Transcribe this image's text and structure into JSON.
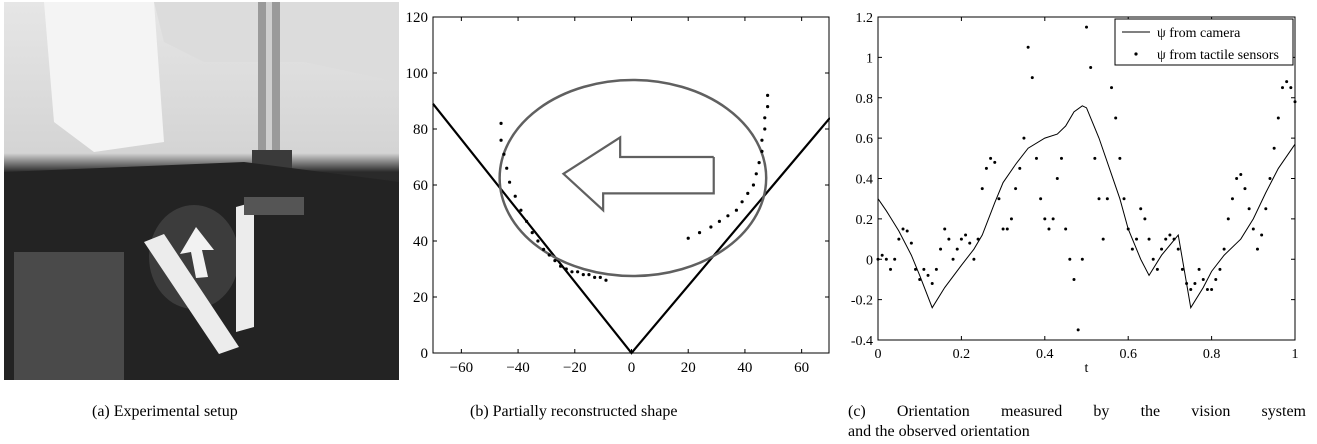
{
  "figure": {
    "captions": {
      "a": "(a) Experimental setup",
      "b": "(b) Partially reconstructed shape",
      "c1": "(c) Orientation measured by the vision system",
      "c2": "and the observed orientation"
    }
  },
  "chart_data": [
    {
      "type": "scatter",
      "xlim": [
        -70,
        70
      ],
      "ylim": [
        0,
        120
      ],
      "xticks": [
        -60,
        -40,
        -20,
        0,
        20,
        40,
        60
      ],
      "yticks": [
        0,
        20,
        40,
        60,
        80,
        100,
        120
      ],
      "grid": false,
      "wedge_lines": [
        {
          "x": [
            -70,
            0,
            70
          ],
          "y": [
            89,
            0,
            84
          ]
        }
      ],
      "ellipse": {
        "cx": 0.5,
        "cy": 62.5,
        "rx": 47,
        "ry": 35
      },
      "arrow_outline": {
        "x": [
          29,
          -4,
          -4,
          -24,
          -10,
          -10,
          29,
          29
        ],
        "y": [
          70,
          70,
          77,
          64,
          51,
          57,
          57,
          70
        ]
      },
      "tactile_points_left": {
        "x": [
          -46,
          -46,
          -45,
          -44,
          -43,
          -41,
          -39,
          -37,
          -35,
          -33,
          -31,
          -29,
          -27,
          -25,
          -23,
          -21,
          -19,
          -17,
          -15,
          -13,
          -11,
          -9
        ],
        "y": [
          82,
          76,
          71,
          66,
          61,
          56,
          51,
          47,
          43,
          40,
          37,
          35,
          33,
          31,
          30,
          29,
          29,
          28,
          28,
          27,
          27,
          26
        ]
      },
      "tactile_points_right": {
        "x": [
          20,
          24,
          28,
          31,
          34,
          37,
          39,
          41,
          43,
          44,
          45,
          46,
          46,
          47,
          47,
          48,
          48
        ],
        "y": [
          41,
          43,
          45,
          47,
          49,
          51,
          54,
          57,
          60,
          64,
          68,
          72,
          76,
          80,
          84,
          88,
          92
        ]
      }
    },
    {
      "type": "line",
      "xlabel": "t",
      "xlim": [
        0,
        1
      ],
      "ylim": [
        -0.4,
        1.2
      ],
      "xticks": [
        "0",
        "0.2",
        "0.4",
        "0.6",
        "0.8",
        "1"
      ],
      "yticks": [
        "-0.4",
        "-0.2",
        "0",
        "0.2",
        "0.4",
        "0.6",
        "0.8",
        "1",
        "1.2"
      ],
      "legend": "top-right",
      "series": [
        {
          "name": "ψ from camera",
          "style": "line",
          "x": [
            0,
            0.02,
            0.05,
            0.08,
            0.1,
            0.13,
            0.16,
            0.2,
            0.23,
            0.25,
            0.28,
            0.3,
            0.33,
            0.36,
            0.4,
            0.43,
            0.45,
            0.47,
            0.49,
            0.5,
            0.53,
            0.56,
            0.58,
            0.6,
            0.63,
            0.65,
            0.68,
            0.72,
            0.75,
            0.78,
            0.8,
            0.83,
            0.87,
            0.9,
            0.93,
            0.96,
            1.0
          ],
          "y": [
            0.3,
            0.24,
            0.14,
            0.02,
            -0.08,
            -0.24,
            -0.14,
            -0.03,
            0.05,
            0.12,
            0.28,
            0.38,
            0.47,
            0.55,
            0.6,
            0.62,
            0.66,
            0.73,
            0.76,
            0.75,
            0.6,
            0.42,
            0.3,
            0.15,
            0.0,
            -0.08,
            0.02,
            0.12,
            -0.24,
            -0.14,
            -0.06,
            0.02,
            0.1,
            0.2,
            0.33,
            0.45,
            0.57
          ]
        },
        {
          "name": "ψ from tactile sensors",
          "style": "dots",
          "x": [
            0,
            0.01,
            0.02,
            0.03,
            0.04,
            0.05,
            0.06,
            0.07,
            0.08,
            0.09,
            0.1,
            0.11,
            0.12,
            0.13,
            0.14,
            0.15,
            0.16,
            0.17,
            0.18,
            0.19,
            0.2,
            0.21,
            0.22,
            0.23,
            0.24,
            0.25,
            0.26,
            0.27,
            0.28,
            0.29,
            0.3,
            0.31,
            0.32,
            0.33,
            0.34,
            0.35,
            0.36,
            0.37,
            0.38,
            0.39,
            0.4,
            0.41,
            0.42,
            0.43,
            0.44,
            0.45,
            0.46,
            0.47,
            0.48,
            0.49,
            0.5,
            0.51,
            0.52,
            0.53,
            0.54,
            0.55,
            0.56,
            0.57,
            0.58,
            0.59,
            0.6,
            0.61,
            0.62,
            0.63,
            0.64,
            0.65,
            0.66,
            0.67,
            0.68,
            0.69,
            0.7,
            0.71,
            0.72,
            0.73,
            0.74,
            0.75,
            0.76,
            0.77,
            0.78,
            0.79,
            0.8,
            0.81,
            0.82,
            0.83,
            0.84,
            0.85,
            0.86,
            0.87,
            0.88,
            0.89,
            0.9,
            0.91,
            0.92,
            0.93,
            0.94,
            0.95,
            0.96,
            0.97,
            0.98,
            0.99,
            1.0
          ],
          "y": [
            0.0,
            0.02,
            0.0,
            -0.05,
            0.0,
            0.1,
            0.15,
            0.14,
            0.08,
            -0.05,
            -0.1,
            -0.05,
            -0.08,
            -0.12,
            -0.05,
            0.05,
            0.15,
            0.1,
            0.0,
            0.05,
            0.1,
            0.12,
            0.08,
            0.0,
            0.1,
            0.35,
            0.45,
            0.5,
            0.48,
            0.3,
            0.15,
            0.15,
            0.2,
            0.35,
            0.45,
            0.6,
            1.05,
            0.9,
            0.5,
            0.3,
            0.2,
            0.15,
            0.2,
            0.4,
            0.5,
            0.15,
            0.0,
            -0.1,
            -0.35,
            0.0,
            1.15,
            0.95,
            0.5,
            0.3,
            0.1,
            0.3,
            0.85,
            0.7,
            0.5,
            0.3,
            0.15,
            0.05,
            0.1,
            0.25,
            0.2,
            0.1,
            0.0,
            -0.05,
            0.05,
            0.1,
            0.12,
            0.1,
            0.05,
            -0.05,
            -0.12,
            -0.15,
            -0.12,
            -0.05,
            -0.1,
            -0.15,
            -0.15,
            -0.1,
            -0.05,
            0.05,
            0.2,
            0.3,
            0.4,
            0.42,
            0.35,
            0.25,
            0.15,
            0.05,
            0.12,
            0.25,
            0.4,
            0.55,
            0.7,
            0.85,
            0.88,
            0.85,
            0.78
          ]
        }
      ]
    }
  ]
}
